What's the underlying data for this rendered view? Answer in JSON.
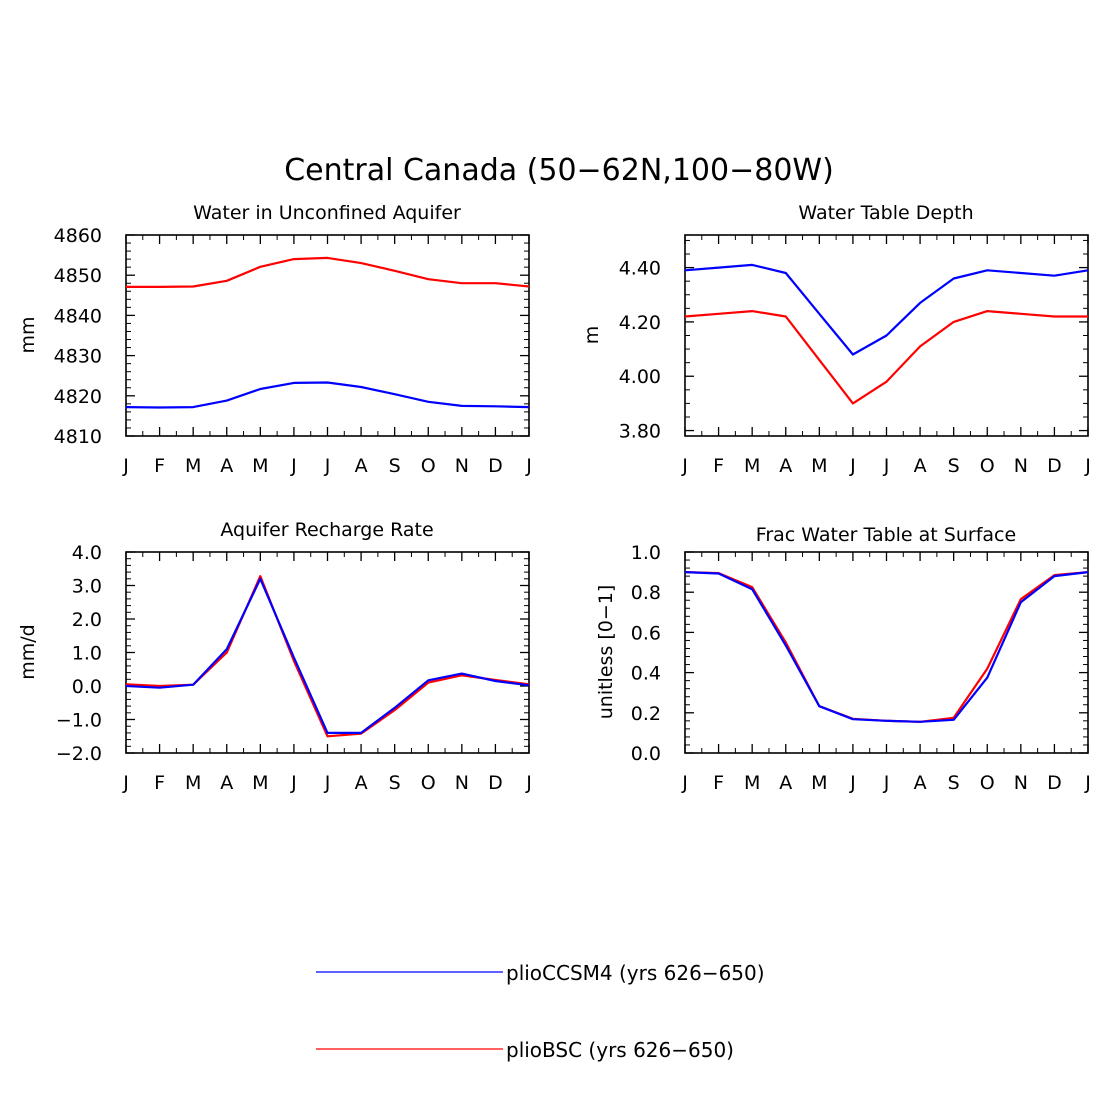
{
  "figure": {
    "title": "Central Canada (50−62N,100−80W)"
  },
  "colors": {
    "pliocesm4": "#0000ff",
    "pliobsc": "#ff0000",
    "axis": "#000000"
  },
  "legend": {
    "placement": "bottom-center",
    "items": [
      {
        "key": "pliocesm4",
        "label": "plioCCSM4 (yrs 626−650)"
      },
      {
        "key": "pliobsc",
        "label": "plioBSC (yrs 626−650)"
      }
    ]
  },
  "chart_data": [
    {
      "id": "aquifer",
      "type": "line",
      "title": "Water in Unconfined Aquifer",
      "xlabel": "",
      "ylabel": "mm",
      "categories": [
        "J",
        "F",
        "M",
        "A",
        "M",
        "J",
        "J",
        "A",
        "S",
        "O",
        "N",
        "D",
        "J"
      ],
      "ylim": [
        4810,
        4860
      ],
      "yticks": [
        4810,
        4820,
        4830,
        4840,
        4850,
        4860
      ],
      "ytick_labels": [
        "4810",
        "4820",
        "4830",
        "4840",
        "4850",
        "4860"
      ],
      "yminor": 2,
      "grid": false,
      "series": [
        {
          "key": "pliocesm4",
          "values": [
            4817.2,
            4817.1,
            4817.2,
            4818.8,
            4821.7,
            4823.2,
            4823.3,
            4822.2,
            4820.4,
            4818.5,
            4817.5,
            4817.4,
            4817.2
          ]
        },
        {
          "key": "pliobsc",
          "values": [
            4847.1,
            4847.1,
            4847.2,
            4848.6,
            4852.1,
            4854.0,
            4854.3,
            4853.0,
            4851.1,
            4849.0,
            4848.0,
            4848.0,
            4847.2
          ]
        }
      ]
    },
    {
      "id": "depth",
      "type": "line",
      "title": "Water Table Depth",
      "xlabel": "",
      "ylabel": "m",
      "categories": [
        "J",
        "F",
        "M",
        "A",
        "M",
        "J",
        "J",
        "A",
        "S",
        "O",
        "N",
        "D",
        "J"
      ],
      "ylim": [
        3.78,
        4.52
      ],
      "yticks": [
        3.8,
        4.0,
        4.2,
        4.4
      ],
      "ytick_labels": [
        "3.80",
        "4.00",
        "4.20",
        "4.40"
      ],
      "yminor": 0.05,
      "grid": false,
      "series": [
        {
          "key": "pliocesm4",
          "values": [
            4.39,
            4.4,
            4.41,
            4.38,
            4.23,
            4.08,
            4.15,
            4.27,
            4.36,
            4.39,
            4.38,
            4.37,
            4.39
          ]
        },
        {
          "key": "pliobsc",
          "values": [
            4.22,
            4.23,
            4.24,
            4.22,
            4.06,
            3.9,
            3.98,
            4.11,
            4.2,
            4.24,
            4.23,
            4.22,
            4.22
          ]
        }
      ]
    },
    {
      "id": "recharge",
      "type": "line",
      "title": "Aquifer Recharge Rate",
      "xlabel": "",
      "ylabel": "mm/d",
      "categories": [
        "J",
        "F",
        "M",
        "A",
        "M",
        "J",
        "J",
        "A",
        "S",
        "O",
        "N",
        "D",
        "J"
      ],
      "ylim": [
        -2,
        4
      ],
      "yticks": [
        -2,
        -1,
        0,
        1,
        2,
        3,
        4
      ],
      "ytick_labels": [
        "−2.0",
        "−1.0",
        "0.0",
        "1.0",
        "2.0",
        "3.0",
        "4.0"
      ],
      "yminor": 0.2,
      "grid": false,
      "series": [
        {
          "key": "pliobsc",
          "values": [
            0.05,
            0.0,
            0.04,
            1.0,
            3.28,
            0.75,
            -1.5,
            -1.42,
            -0.72,
            0.1,
            0.32,
            0.18,
            0.05
          ]
        },
        {
          "key": "pliocesm4",
          "values": [
            0.0,
            -0.05,
            0.04,
            1.1,
            3.2,
            0.85,
            -1.4,
            -1.4,
            -0.65,
            0.17,
            0.37,
            0.15,
            0.02
          ]
        }
      ]
    },
    {
      "id": "frac",
      "type": "line",
      "title": "Frac Water Table at Surface",
      "xlabel": "",
      "ylabel": "unitless [0−1]",
      "categories": [
        "J",
        "F",
        "M",
        "A",
        "M",
        "J",
        "J",
        "A",
        "S",
        "O",
        "N",
        "D",
        "J"
      ],
      "ylim": [
        0,
        1
      ],
      "yticks": [
        0,
        0.2,
        0.4,
        0.6,
        0.8,
        1.0
      ],
      "ytick_labels": [
        "0.0",
        "0.2",
        "0.4",
        "0.6",
        "0.8",
        "1.0"
      ],
      "yminor": 0.04,
      "grid": false,
      "series": [
        {
          "key": "pliobsc",
          "values": [
            0.9,
            0.895,
            0.825,
            0.55,
            0.233,
            0.17,
            0.16,
            0.155,
            0.175,
            0.42,
            0.765,
            0.885,
            0.9
          ]
        },
        {
          "key": "pliocesm4",
          "values": [
            0.9,
            0.893,
            0.815,
            0.535,
            0.233,
            0.168,
            0.16,
            0.155,
            0.165,
            0.375,
            0.75,
            0.88,
            0.9
          ]
        }
      ]
    }
  ]
}
